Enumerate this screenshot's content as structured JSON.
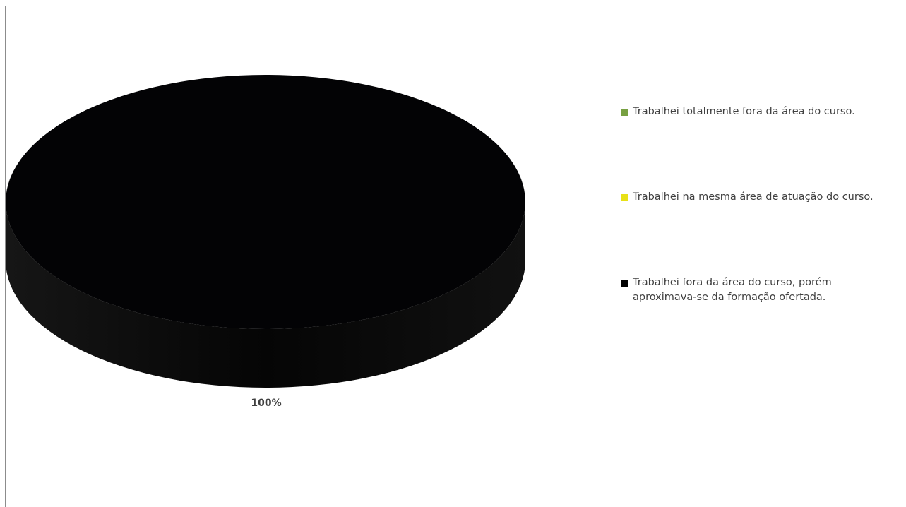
{
  "chart_data": {
    "type": "pie",
    "style": "3d",
    "title": "",
    "categories": [
      "Trabalhei totalmente fora da área do curso.",
      "Trabalhei na mesma área de atuação do curso.",
      "Trabalhei fora da área do curso, porém aproximava-se da formação ofertada."
    ],
    "values": [
      0,
      0,
      100
    ],
    "value_unit": "%",
    "colors": [
      "#77a041",
      "#e8e117",
      "#000000"
    ],
    "data_labels": [
      "100%"
    ],
    "legend_position": "right"
  }
}
